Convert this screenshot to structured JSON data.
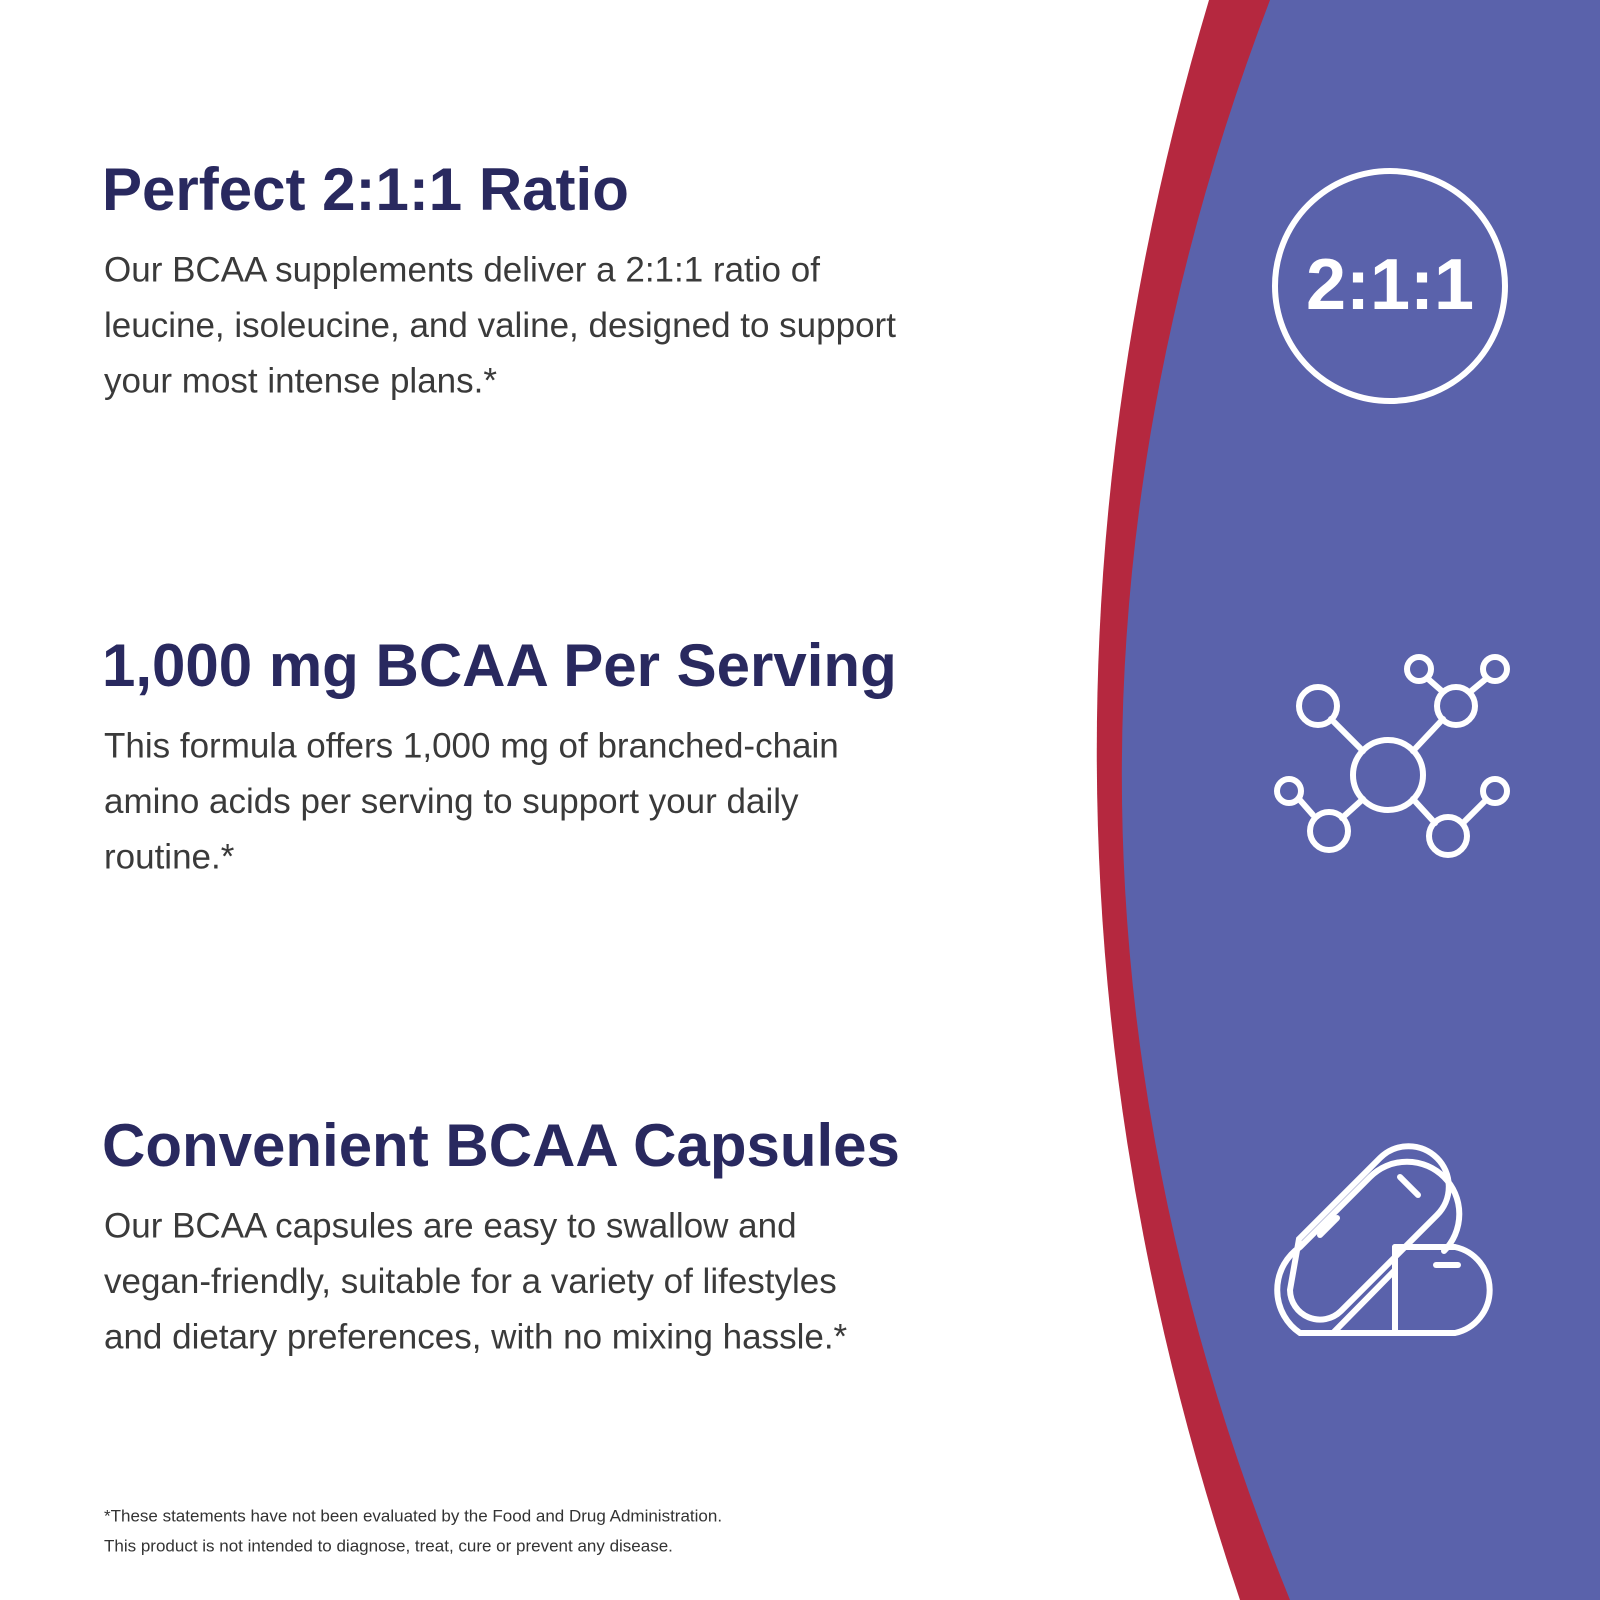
{
  "features": [
    {
      "title": "Perfect 2:1:1 Ratio",
      "body": [
        "Our BCAA supplements deliver a 2:1:1 ratio of",
        "leucine, isoleucine, and valine, designed to support",
        "your most intense plans.*"
      ]
    },
    {
      "title": "1,000 mg BCAA Per Serving",
      "body": [
        "This formula offers 1,000 mg of branched-chain",
        "amino acids per serving to support your daily",
        "routine.*"
      ]
    },
    {
      "title": "Convenient BCAA Capsules",
      "body": [
        "Our BCAA capsules are easy to swallow and",
        "vegan-friendly, suitable for a variety of lifestyles",
        "and dietary preferences, with no mixing hassle.*"
      ]
    }
  ],
  "ratio_icon": "2:1:1",
  "disclaimer": [
    "*These statements have not been evaluated by the Food and Drug Administration.",
    "This product is not intended to diagnose, treat, cure or prevent any disease."
  ]
}
